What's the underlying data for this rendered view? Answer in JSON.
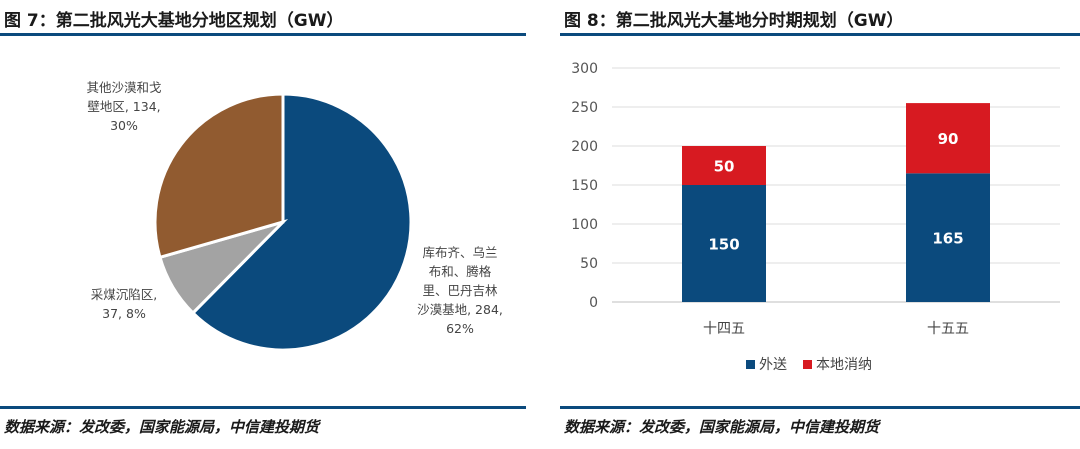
{
  "fig7": {
    "title": "图 7：第二批风光大基地分地区规划（GW）",
    "source": "数据来源：发改委，国家能源局，中信建投期货"
  },
  "fig8": {
    "title": "图 8：第二批风光大基地分时期规划（GW）",
    "source": "数据来源：发改委，国家能源局，中信建投期货"
  },
  "chart_data": [
    {
      "type": "pie",
      "title": "第二批风光大基地分地区规划（GW）",
      "slices": [
        {
          "label_lines": [
            "库布齐、乌兰",
            "布和、腾格",
            "里、巴丹吉林",
            "沙漠基地, 284,",
            "62%"
          ],
          "value": 284,
          "percent": 62,
          "color": "#0b4a7d"
        },
        {
          "label_lines": [
            "采煤沉陷区,",
            "37, 8%"
          ],
          "value": 37,
          "percent": 8,
          "color": "#a3a3a3"
        },
        {
          "label_lines": [
            "其他沙漠和戈",
            "壁地区, 134,",
            "30%"
          ],
          "value": 134,
          "percent": 30,
          "color": "#915b30"
        }
      ]
    },
    {
      "type": "bar",
      "stacked": true,
      "title": "第二批风光大基地分时期规划（GW）",
      "categories": [
        "十四五",
        "十五五"
      ],
      "series": [
        {
          "name": "外送",
          "values": [
            150,
            165
          ],
          "color": "#0b4a7d"
        },
        {
          "name": "本地消纳",
          "values": [
            50,
            90
          ],
          "color": "#d71a21"
        }
      ],
      "ylim": [
        0,
        300
      ],
      "yticks": [
        0,
        50,
        100,
        150,
        200,
        250,
        300
      ],
      "grid": true,
      "legend": "bottom"
    }
  ]
}
